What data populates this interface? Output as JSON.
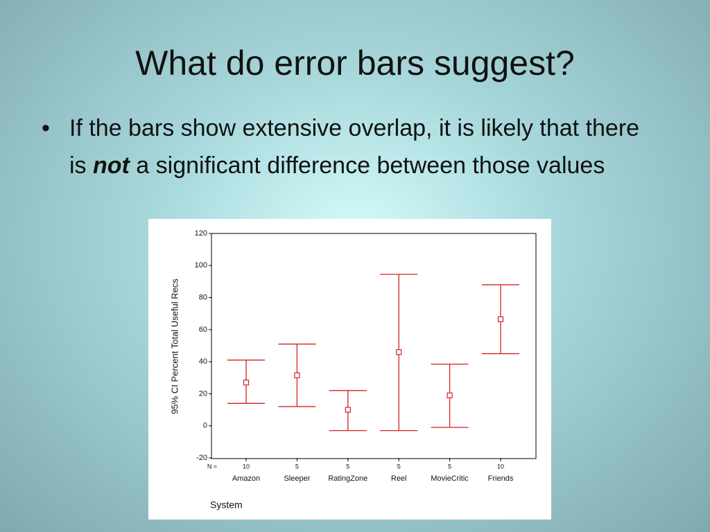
{
  "slide": {
    "title": "What do error bars suggest?",
    "bullet": [
      "If the bars show extensive overlap, it is likely that there is ",
      "not",
      " a significant difference between those values"
    ]
  },
  "chart_data": {
    "type": "errorbar",
    "x_label": "System",
    "y_label": "95% CI Percent Total Useful Recs",
    "categories": [
      "Amazon",
      "Sleeper",
      "RatingZone",
      "Reel",
      "MovieCritic",
      "Friends"
    ],
    "n_label": "N =",
    "n": [
      10,
      5,
      5,
      5,
      5,
      10
    ],
    "values": [
      27,
      31.5,
      10,
      46,
      19,
      66.5
    ],
    "lower": [
      14,
      12,
      -3,
      -3,
      -1,
      45
    ],
    "upper": [
      41,
      51,
      22,
      94.5,
      38.5,
      88
    ],
    "color": "#d42020",
    "ylim": [
      -20,
      120
    ],
    "yticks": [
      -20,
      0,
      20,
      40,
      60,
      80,
      100,
      120
    ]
  }
}
